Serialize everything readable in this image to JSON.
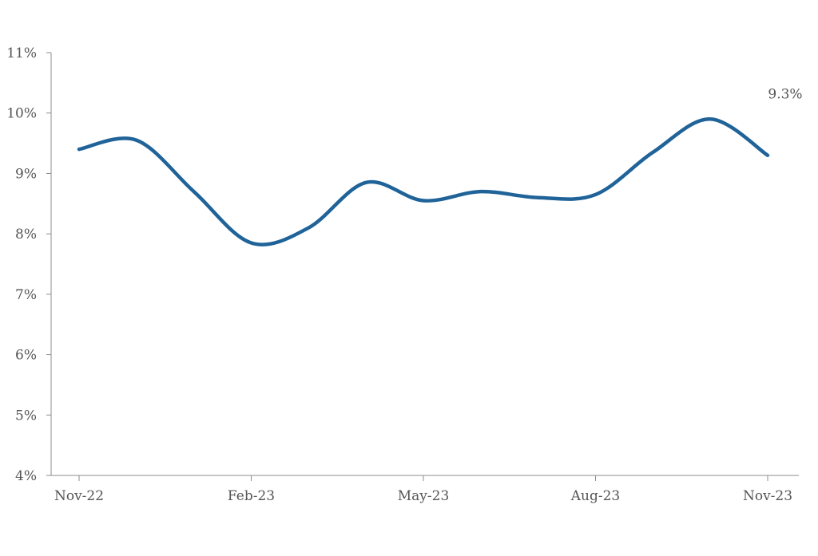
{
  "chart_data": {
    "type": "line",
    "title": "",
    "xlabel": "",
    "ylabel": "",
    "ylim": [
      4,
      11
    ],
    "y_ticks": [
      {
        "value": 4,
        "label": "4%"
      },
      {
        "value": 5,
        "label": "5%"
      },
      {
        "value": 6,
        "label": "6%"
      },
      {
        "value": 7,
        "label": "7%"
      },
      {
        "value": 8,
        "label": "8%"
      },
      {
        "value": 9,
        "label": "9%"
      },
      {
        "value": 10,
        "label": "10%"
      },
      {
        "value": 11,
        "label": "11%"
      }
    ],
    "x_ticks": [
      "Nov-22",
      "Feb-23",
      "May-23",
      "Aug-23",
      "Nov-23"
    ],
    "grid": false,
    "legend": "none",
    "series": [
      {
        "color": "#1f6399",
        "x": [
          "Nov-22",
          "Dec-22",
          "Jan-23",
          "Feb-23",
          "Mar-23",
          "Apr-23",
          "May-23",
          "Jun-23",
          "Jul-23",
          "Aug-23",
          "Sep-23",
          "Oct-23",
          "Nov-23"
        ],
        "values": [
          9.4,
          9.55,
          8.7,
          7.85,
          8.1,
          8.85,
          8.55,
          8.7,
          8.6,
          8.65,
          9.35,
          9.9,
          9.3
        ]
      }
    ],
    "annotations": [
      {
        "text": "9.3%",
        "x": "Nov-23",
        "y": 9.3
      }
    ]
  }
}
